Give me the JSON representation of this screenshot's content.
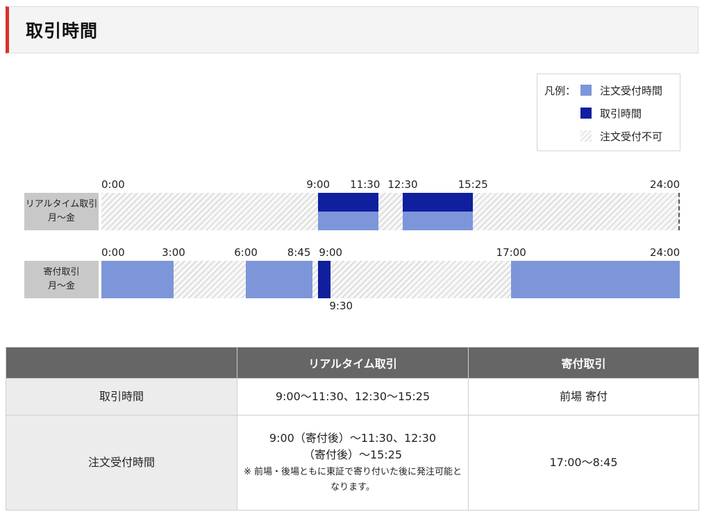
{
  "header": {
    "title": "取引時間"
  },
  "legend": {
    "prefix": "凡例：",
    "items": [
      {
        "label": "注文受付時間",
        "color": "#7d96da",
        "icon": "solid-swatch"
      },
      {
        "label": "取引時間",
        "color": "#0f1f9e",
        "icon": "solid-swatch"
      },
      {
        "label": "注文受付不可",
        "color": "#e4e4e4",
        "icon": "hatched-swatch"
      }
    ]
  },
  "timeline": {
    "range_hours": [
      0,
      24
    ],
    "rows": [
      {
        "label_line1": "リアルタイム取引",
        "label_line2": "月～金",
        "ticks_top": [
          "0:00",
          "9:00",
          "11:30",
          "12:30",
          "15:25",
          "24:00"
        ],
        "ticks_bottom": [],
        "order_segments": [
          [
            "9:00",
            "11:30"
          ],
          [
            "12:30",
            "15:25"
          ]
        ],
        "trade_segments": [
          [
            "9:00",
            "11:30"
          ],
          [
            "12:30",
            "15:25"
          ]
        ]
      },
      {
        "label_line1": "寄付取引",
        "label_line2": "月～金",
        "ticks_top": [
          "0:00",
          "3:00",
          "6:00",
          "8:45",
          "9:00",
          "17:00",
          "24:00"
        ],
        "ticks_bottom": [
          "9:30"
        ],
        "order_segments": [
          [
            "0:00",
            "3:00"
          ],
          [
            "6:00",
            "8:45"
          ],
          [
            "17:00",
            "24:00"
          ]
        ],
        "trade_segments": [
          [
            "9:00",
            "9:30"
          ]
        ]
      }
    ]
  },
  "table": {
    "headers": [
      "",
      "リアルタイム取引",
      "寄付取引"
    ],
    "rows": [
      {
        "head": "取引時間",
        "realtime": "9:00～11:30、12:30～15:25",
        "opening": "前場 寄付"
      },
      {
        "head": "注文受付時間",
        "realtime_line1": "9:00（寄付後）～11:30、12:30",
        "realtime_line2": "（寄付後）～15:25",
        "realtime_note": "※ 前場・後場ともに東証で寄り付いた後に発注可能となります。",
        "opening": "17:00～8:45"
      }
    ]
  }
}
